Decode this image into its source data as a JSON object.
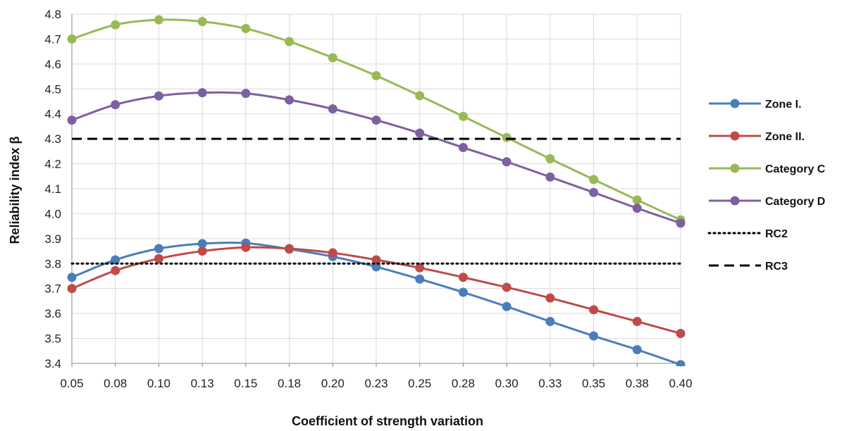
{
  "chart_data": {
    "type": "line",
    "title": "",
    "xlabel": "Coefficient of strength variation",
    "ylabel": "Reliability index β",
    "categories": [
      "0.05",
      "0.08",
      "0.10",
      "0.13",
      "0.15",
      "0.18",
      "0.20",
      "0.23",
      "0.25",
      "0.28",
      "0.30",
      "0.33",
      "0.35",
      "0.38",
      "0.40"
    ],
    "y_ticks": [
      "3.4",
      "3.5",
      "3.6",
      "3.7",
      "3.8",
      "3.9",
      "4.0",
      "4.1",
      "4.2",
      "4.3",
      "4.4",
      "4.5",
      "4.6",
      "4.7",
      "4.8"
    ],
    "ylim": [
      3.4,
      4.8
    ],
    "grid": true,
    "legend_position": "right",
    "series": [
      {
        "name": "Zone I.",
        "color": "#4a7ebb",
        "style": "line-markers",
        "values": [
          3.745,
          3.815,
          3.86,
          3.88,
          3.882,
          3.858,
          3.828,
          3.787,
          3.738,
          3.685,
          3.628,
          3.568,
          3.51,
          3.455,
          3.395
        ]
      },
      {
        "name": "Zone II.",
        "color": "#be4b48",
        "style": "line-markers",
        "values": [
          3.7,
          3.772,
          3.82,
          3.85,
          3.865,
          3.86,
          3.843,
          3.815,
          3.783,
          3.745,
          3.705,
          3.662,
          3.615,
          3.568,
          3.52
        ]
      },
      {
        "name": "Category C",
        "color": "#98b954",
        "style": "line-markers",
        "values": [
          4.7,
          4.757,
          4.777,
          4.77,
          4.742,
          4.69,
          4.625,
          4.553,
          4.473,
          4.39,
          4.305,
          4.22,
          4.137,
          4.055,
          3.975
        ]
      },
      {
        "name": "Category D",
        "color": "#7d60a0",
        "style": "line-markers",
        "values": [
          4.375,
          4.437,
          4.472,
          4.485,
          4.482,
          4.456,
          4.42,
          4.375,
          4.323,
          4.265,
          4.208,
          4.147,
          4.085,
          4.022,
          3.962
        ]
      },
      {
        "name": "RC2",
        "color": "#000000",
        "style": "dotted",
        "values": [
          3.8,
          3.8,
          3.8,
          3.8,
          3.8,
          3.8,
          3.8,
          3.8,
          3.8,
          3.8,
          3.8,
          3.8,
          3.8,
          3.8,
          3.8
        ]
      },
      {
        "name": "RC3",
        "color": "#000000",
        "style": "dashed",
        "values": [
          4.3,
          4.3,
          4.3,
          4.3,
          4.3,
          4.3,
          4.3,
          4.3,
          4.3,
          4.3,
          4.3,
          4.3,
          4.3,
          4.3,
          4.3
        ]
      }
    ]
  }
}
